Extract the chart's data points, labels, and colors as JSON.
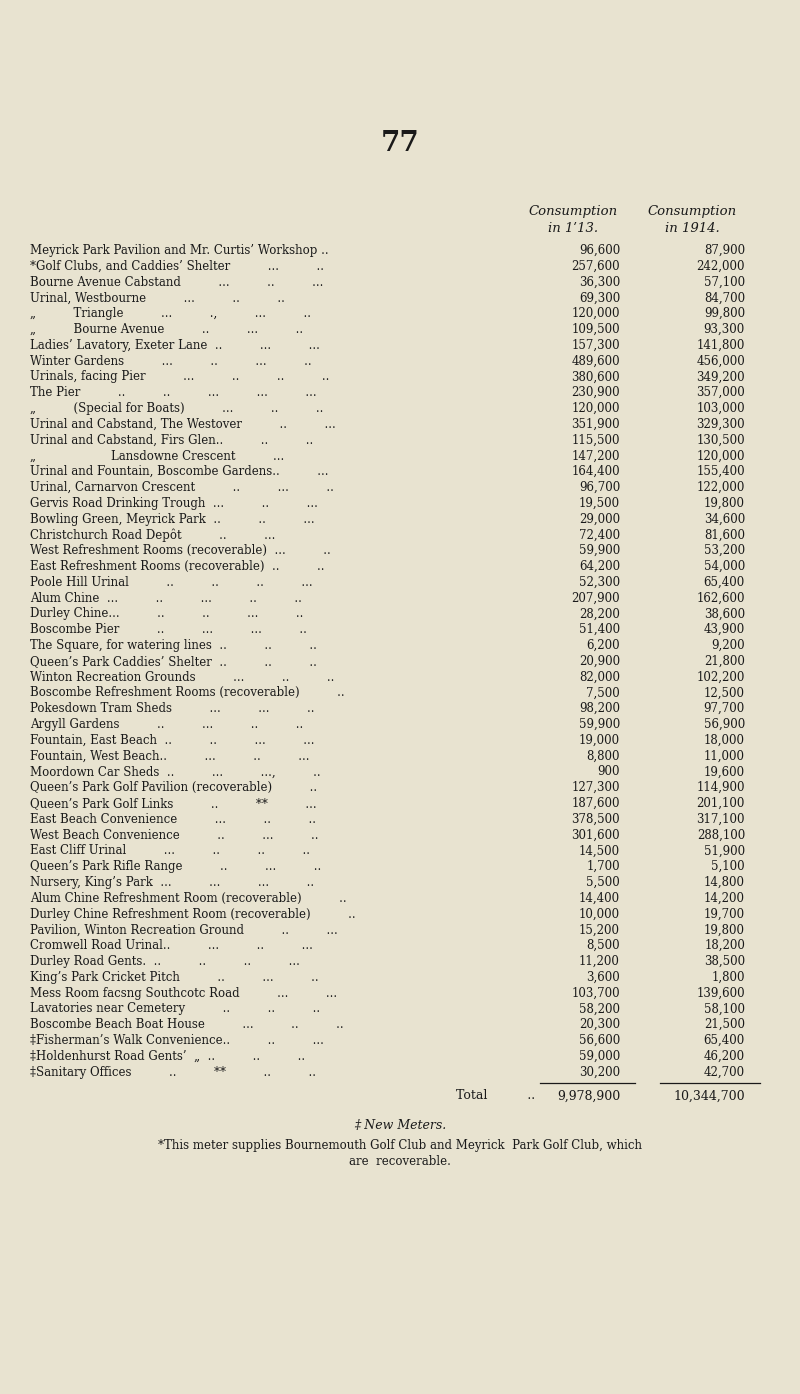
{
  "page_number": "77",
  "bg_color": "#e8e3d0",
  "text_color": "#1a1a1a",
  "header1": "Consumption",
  "header2": "Consumption",
  "header3": "in 1ʹ13.",
  "header4": "in 1914.",
  "rows": [
    [
      "Meyrick Park Pavilion and Mr. Curtis’ Workshop ..",
      "96,600",
      "87,900"
    ],
    [
      "*Golf Clubs, and Caddies’ Shelter          ...          ..",
      "257,600",
      "242,000"
    ],
    [
      "Bourne Avenue Cabstand          ...          ..          ...",
      "36,300",
      "57,100"
    ],
    [
      "Urinal, Westbourne          ...          ..          ..",
      "69,300",
      "84,700"
    ],
    [
      "„          Triangle          ...          .,          ...          ..",
      "120,000",
      "99,800"
    ],
    [
      "„          Bourne Avenue          ..          ...          ..",
      "109,500",
      "93,300"
    ],
    [
      "Ladies’ Lavatory, Exeter Lane  ..          ...          ...",
      "157,300",
      "141,800"
    ],
    [
      "Winter Gardens          ...          ..          ...          ..",
      "489,600",
      "456,000"
    ],
    [
      "Urinals, facing Pier          ...          ..          ..          ..",
      "380,600",
      "349,200"
    ],
    [
      "The Pier          ..          ..          ...          ...          ...",
      "230,900",
      "357,000"
    ],
    [
      "„          (Special for Boats)          ...          ..          ..",
      "120,000",
      "103,000"
    ],
    [
      "Urinal and Cabstand, The Westover          ..          ...",
      "351,900",
      "329,300"
    ],
    [
      "Urinal and Cabstand, Firs Glen..          ..          ..",
      "115,500",
      "130,500"
    ],
    [
      "„                    Lansdowne Crescent          ...",
      "147,200",
      "120,000"
    ],
    [
      "Urinal and Fountain, Boscombe Gardens..          ...",
      "164,400",
      "155,400"
    ],
    [
      "Urinal, Carnarvon Crescent          ..          ...          ..",
      "96,700",
      "122,000"
    ],
    [
      "Gervis Road Drinking Trough  ...          ..          ...",
      "19,500",
      "19,800"
    ],
    [
      "Bowling Green, Meyrick Park  ..          ..          ...",
      "29,000",
      "34,600"
    ],
    [
      "Christchurch Road Depôt          ..          ...",
      "72,400",
      "81,600"
    ],
    [
      "West Refreshment Rooms (recoverable)  ...          ..",
      "59,900",
      "53,200"
    ],
    [
      "East Refreshment Rooms (recoverable)  ..          ..",
      "64,200",
      "54,000"
    ],
    [
      "Poole Hill Urinal          ..          ..          ..          ...",
      "52,300",
      "65,400"
    ],
    [
      "Alum Chine  ...          ..          ...          ..          ..",
      "207,900",
      "162,600"
    ],
    [
      "Durley Chine...          ..          ..          ...          ..",
      "28,200",
      "38,600"
    ],
    [
      "Boscombe Pier          ..          ...          ...          ..",
      "51,400",
      "43,900"
    ],
    [
      "The Square, for watering lines  ..          ..          ..",
      "6,200",
      "9,200"
    ],
    [
      "Queen’s Park Caddies’ Shelter  ..          ..          ..",
      "20,900",
      "21,800"
    ],
    [
      "Winton Recreation Grounds          ...          ..          ..",
      "82,000",
      "102,200"
    ],
    [
      "Boscombe Refreshment Rooms (recoverable)          ..",
      "7,500",
      "12,500"
    ],
    [
      "Pokesdown Tram Sheds          ...          ...          ..",
      "98,200",
      "97,700"
    ],
    [
      "Argyll Gardens          ..          ...          ..          ..",
      "59,900",
      "56,900"
    ],
    [
      "Fountain, East Beach  ..          ..          ...          ...",
      "19,000",
      "18,000"
    ],
    [
      "Fountain, West Beach..          ...          ..          ...",
      "8,800",
      "11,000"
    ],
    [
      "Moordown Car Sheds  ..          ...          ...,          ..",
      "900",
      "19,600"
    ],
    [
      "Queen’s Park Golf Pavilion (recoverable)          ..",
      "127,300",
      "114,900"
    ],
    [
      "Queen’s Park Golf Links          ..          **          ...",
      "187,600",
      "201,100"
    ],
    [
      "East Beach Convenience          ...          ..          ..",
      "378,500",
      "317,100"
    ],
    [
      "West Beach Convenience          ..          ...          ..",
      "301,600",
      "288,100"
    ],
    [
      "East Cliff Urinal          ...          ..          ..          ..",
      "14,500",
      "51,900"
    ],
    [
      "Queen’s Park Rifle Range          ..          ...          ..",
      "1,700",
      "5,100"
    ],
    [
      "Nursery, King’s Park  ...          ...          ...          ..",
      "5,500",
      "14,800"
    ],
    [
      "Alum Chine Refreshment Room (recoverable)          ..",
      "14,400",
      "14,200"
    ],
    [
      "Durley Chine Refreshment Room (recoverable)          ..",
      "10,000",
      "19,700"
    ],
    [
      "Pavilion, Winton Recreation Ground          ..          ...",
      "15,200",
      "19,800"
    ],
    [
      "Cromwell Road Urinal..          ...          ..          ...",
      "8,500",
      "18,200"
    ],
    [
      "Durley Road Gents.  ..          ..          ..          ...",
      "11,200",
      "38,500"
    ],
    [
      "King’s Park Cricket Pitch          ..          ...          ..",
      "3,600",
      "1,800"
    ],
    [
      "Mess Room facsng Southcotc Road          ...          ...",
      "103,700",
      "139,600"
    ],
    [
      "Lavatories near Cemetery          ..          ..          ..",
      "58,200",
      "58,100"
    ],
    [
      "Boscombe Beach Boat House          ...          ..          ..",
      "20,300",
      "21,500"
    ],
    [
      "‡Fisherman’s Walk Convenience..          ..          ...",
      "56,600",
      "65,400"
    ],
    [
      "‡Holdenhurst Road Gents’  „  ..          ..          ..",
      "59,000",
      "46,200"
    ],
    [
      "‡Sanitary Offices          ..          **          ..          ..",
      "30,200",
      "42,700"
    ]
  ],
  "total_label": "Total          ..",
  "total_1913": "9,978,900",
  "total_1914": "10,344,700",
  "footnote1": "‡ New Meters.",
  "footnote2": "*This meter supplies Bournemouth Golf Club and Meyrick  Park Golf Club, which",
  "footnote3": "are  recoverable."
}
